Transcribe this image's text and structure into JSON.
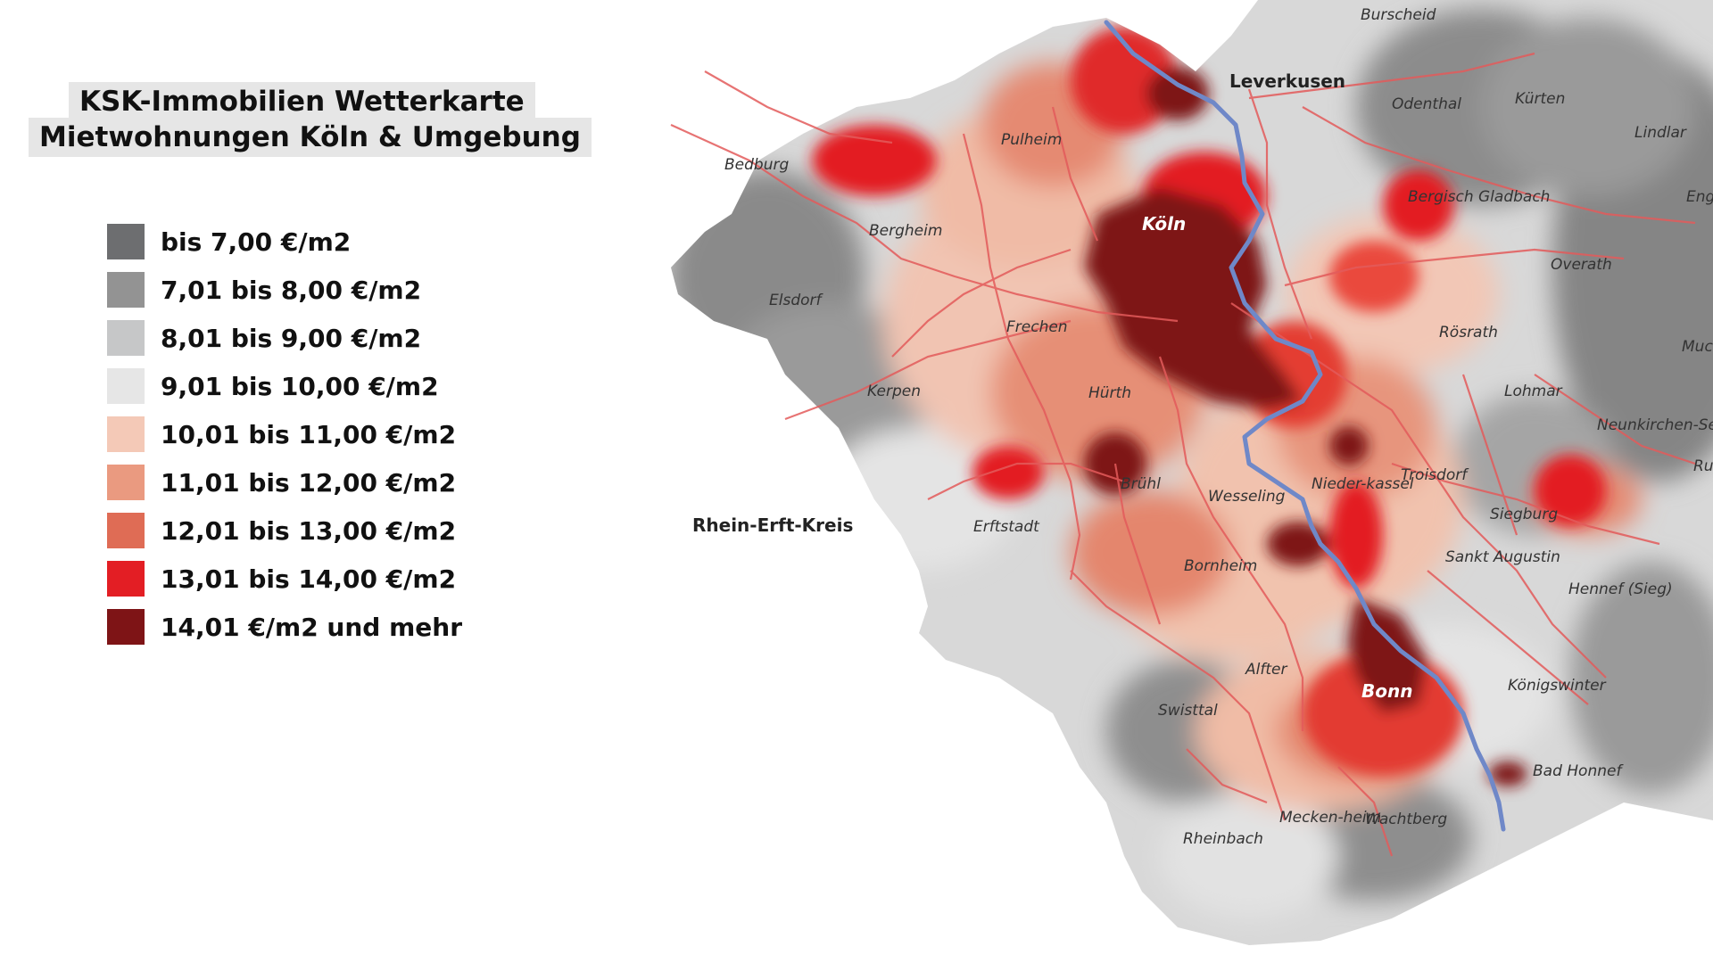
{
  "title": {
    "line1": "KSK-Immobilien Wetterkarte",
    "line2": "Mietwohnungen Köln & Umgebung"
  },
  "legend": [
    {
      "label": "bis 7,00 €/m2",
      "color": "#6d6e70"
    },
    {
      "label": "7,01 bis 8,00 €/m2",
      "color": "#939393"
    },
    {
      "label": "8,01 bis 9,00 €/m2",
      "color": "#c6c7c8"
    },
    {
      "label": "9,01 bis 10,00 €/m2",
      "color": "#e6e6e6"
    },
    {
      "label": "10,01 bis 11,00 €/m2",
      "color": "#f4c9b7"
    },
    {
      "label": "11,01 bis 12,00 €/m2",
      "color": "#ea9a80"
    },
    {
      "label": "12,01 bis 13,00 €/m2",
      "color": "#df6c55"
    },
    {
      "label": "13,01 bis 14,00 €/m2",
      "color": "#e31e24"
    },
    {
      "label": "14,01 €/m2 und mehr",
      "color": "#7e1416"
    }
  ],
  "map": {
    "region_label": "Rhein-Erft-Kreis",
    "river_color": "#6f88c8",
    "road_color": "#e35b5b",
    "places": {
      "burscheid": "Burscheid",
      "leverkusen": "Leverkusen",
      "odenthal": "Odenthal",
      "kuerten": "Kürten",
      "lindlar": "Lindlar",
      "engelskirchen": "Eng",
      "pulheim": "Pulheim",
      "bedburg": "Bedburg",
      "koeln": "Köln",
      "bergisch_gladbach": "Bergisch Gladbach",
      "bergheim": "Bergheim",
      "overath": "Overath",
      "elsdorf": "Elsdorf",
      "frechen": "Frechen",
      "roesrath": "Rösrath",
      "much": "Muc",
      "kerpen": "Kerpen",
      "huerth": "Hürth",
      "lohmar": "Lohmar",
      "neunkirchen": "Neunkirchen-Seelscheid",
      "ruppichteroth": "Ru",
      "bruehl": "Brühl",
      "wesseling": "Wesseling",
      "niederkassel": "Nieder-kassel",
      "troisdorf": "Troisdorf",
      "siegburg": "Siegburg",
      "erftstadt": "Erftstadt",
      "bornheim": "Bornheim",
      "sankt_augustin": "Sankt Augustin",
      "hennef": "Hennef (Sieg)",
      "alfter": "Alfter",
      "bonn": "Bonn",
      "koenigswinter": "Königswinter",
      "swisttal": "Swisttal",
      "bad_honnef": "Bad Honnef",
      "meckenheim": "Mecken-heim",
      "wachtberg": "Wachtberg",
      "rheinbach": "Rheinbach"
    }
  }
}
